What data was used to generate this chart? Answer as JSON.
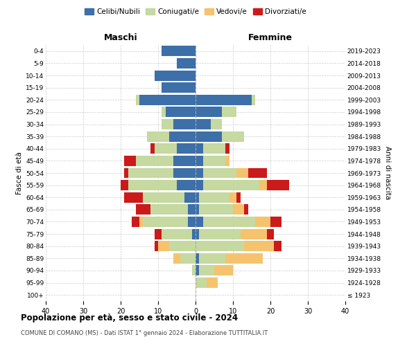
{
  "age_groups": [
    "100+",
    "95-99",
    "90-94",
    "85-89",
    "80-84",
    "75-79",
    "70-74",
    "65-69",
    "60-64",
    "55-59",
    "50-54",
    "45-49",
    "40-44",
    "35-39",
    "30-34",
    "25-29",
    "20-24",
    "15-19",
    "10-14",
    "5-9",
    "0-4"
  ],
  "birth_years": [
    "≤ 1923",
    "1924-1928",
    "1929-1933",
    "1934-1938",
    "1939-1943",
    "1944-1948",
    "1949-1953",
    "1954-1958",
    "1959-1963",
    "1964-1968",
    "1969-1973",
    "1974-1978",
    "1979-1983",
    "1984-1988",
    "1989-1993",
    "1994-1998",
    "1999-2003",
    "2004-2008",
    "2009-2013",
    "2014-2018",
    "2019-2023"
  ],
  "colors": {
    "celibi": "#3d6fa8",
    "coniugati": "#c5d9a0",
    "vedovi": "#f5c36e",
    "divorziati": "#cc1a1a"
  },
  "males": {
    "celibi": [
      0,
      0,
      0,
      0,
      0,
      1,
      2,
      2,
      3,
      5,
      6,
      6,
      5,
      7,
      6,
      8,
      15,
      9,
      11,
      5,
      9
    ],
    "coniugati": [
      0,
      0,
      1,
      4,
      7,
      8,
      12,
      10,
      11,
      13,
      12,
      10,
      6,
      6,
      3,
      1,
      1,
      0,
      0,
      0,
      0
    ],
    "vedovi": [
      0,
      0,
      0,
      2,
      3,
      0,
      1,
      0,
      0,
      0,
      0,
      0,
      0,
      0,
      0,
      0,
      0,
      0,
      0,
      0,
      0
    ],
    "divorziati": [
      0,
      0,
      0,
      0,
      1,
      2,
      2,
      4,
      5,
      2,
      1,
      3,
      1,
      0,
      0,
      0,
      0,
      0,
      0,
      0,
      0
    ]
  },
  "females": {
    "celibi": [
      0,
      0,
      1,
      1,
      0,
      1,
      2,
      1,
      1,
      2,
      2,
      2,
      2,
      7,
      4,
      7,
      15,
      0,
      0,
      0,
      0
    ],
    "coniugati": [
      0,
      3,
      4,
      7,
      13,
      11,
      14,
      9,
      8,
      15,
      9,
      6,
      6,
      6,
      3,
      4,
      1,
      0,
      0,
      0,
      0
    ],
    "vedovi": [
      0,
      3,
      5,
      10,
      8,
      7,
      4,
      3,
      2,
      2,
      3,
      1,
      0,
      0,
      0,
      0,
      0,
      0,
      0,
      0,
      0
    ],
    "divorziati": [
      0,
      0,
      0,
      0,
      2,
      2,
      3,
      1,
      1,
      6,
      5,
      0,
      1,
      0,
      0,
      0,
      0,
      0,
      0,
      0,
      0
    ]
  },
  "title": "Popolazione per età, sesso e stato civile - 2024",
  "subtitle": "COMUNE DI COMANO (MS) - Dati ISTAT 1° gennaio 2024 - Elaborazione TUTTITALIA.IT",
  "xlabel_left": "Maschi",
  "xlabel_right": "Femmine",
  "ylabel_left": "Fasce di età",
  "ylabel_right": "Anni di nascita",
  "xlim": 40,
  "legend_labels": [
    "Celibi/Nubili",
    "Coniugati/e",
    "Vedovi/e",
    "Divorziati/e"
  ],
  "background_color": "#ffffff",
  "grid_color": "#cccccc"
}
